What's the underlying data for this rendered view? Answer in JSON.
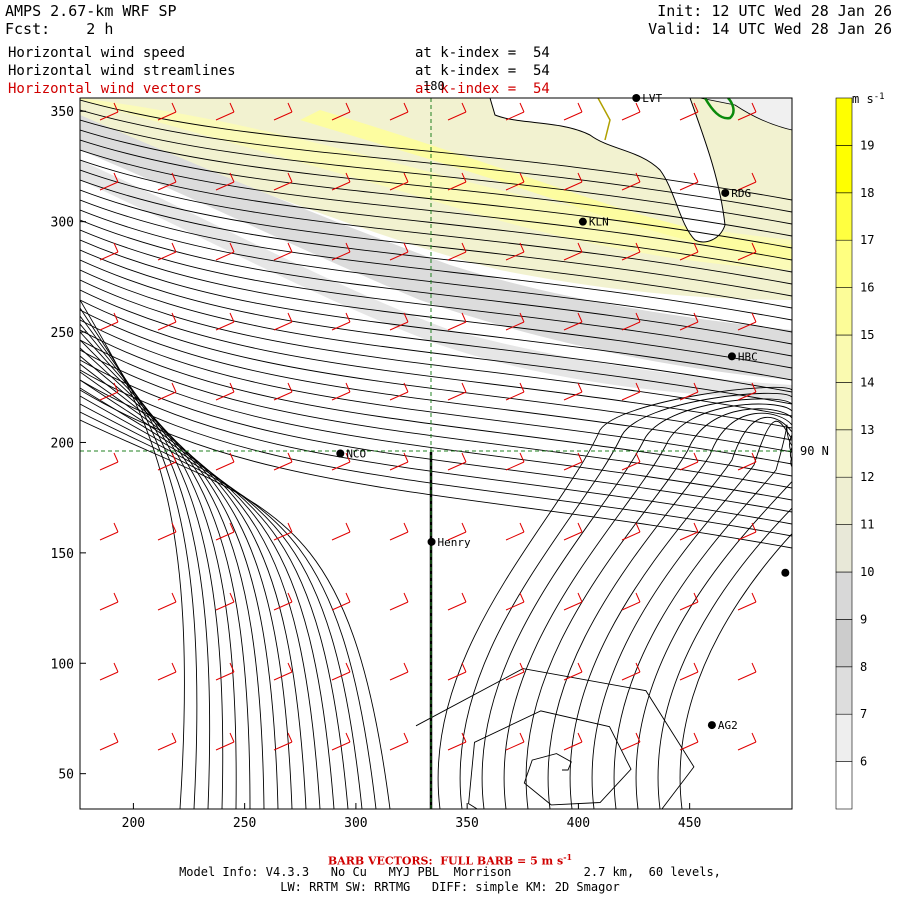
{
  "header": {
    "model": "AMPS 2.67-km WRF SP",
    "init": "Init: 12 UTC Wed 28 Jan 26",
    "fcst_label": "Fcst:",
    "fcst_value": "2 h",
    "valid": "Valid: 14 UTC Wed 28 Jan 26"
  },
  "fields": [
    {
      "name": "Horizontal wind speed",
      "level": "at k-index =  54",
      "color": "#000000"
    },
    {
      "name": "Horizontal wind streamlines",
      "level": "at k-index =  54",
      "color": "#000000"
    },
    {
      "name": "Horizontal wind vectors",
      "level": "at k-index =  54",
      "color": "#d00000"
    }
  ],
  "chart_data": {
    "type": "heatmap",
    "x_ticks": [
      200,
      250,
      300,
      350,
      400,
      450
    ],
    "y_ticks": [
      50,
      100,
      150,
      200,
      250,
      300,
      350
    ],
    "xlim": [
      176,
      496
    ],
    "ylim": [
      34,
      356
    ],
    "guide_lines": {
      "meridian_label": "180",
      "parallel_label": "90 N",
      "meridian_x": 333,
      "parallel_y": 195
    },
    "stations": [
      {
        "name": "LVT",
        "x": 426,
        "y": 356
      },
      {
        "name": "RDG",
        "x": 466,
        "y": 313
      },
      {
        "name": "KLN",
        "x": 402,
        "y": 300
      },
      {
        "name": "HBC",
        "x": 469,
        "y": 239
      },
      {
        "name": "NCO",
        "x": 293,
        "y": 195
      },
      {
        "name": "Henry",
        "x": 334,
        "y": 155
      },
      {
        "name": "",
        "x": 493,
        "y": 141
      },
      {
        "name": "AG2",
        "x": 460,
        "y": 72
      }
    ],
    "colorbar": {
      "unit": "m s",
      "unit_sup": "-1",
      "levels": [
        6,
        7,
        8,
        9,
        10,
        11,
        12,
        13,
        14,
        15,
        16,
        17,
        18,
        19
      ],
      "colors": [
        "#ffffff",
        "#eeeeee",
        "#dddddd",
        "#cccccc",
        "#d8d8d8",
        "#e8e8d8",
        "#efefd2",
        "#f4f4cc",
        "#f8f8c0",
        "#fafab0",
        "#fcfc98",
        "#ffff80",
        "#ffff40",
        "#ffff00"
      ]
    },
    "barb_note": "BARB VECTORS:  FULL BARB = 5 m s",
    "barb_note_sup": "-1"
  },
  "footer": {
    "model_info": "Model Info: V4.3.3   No Cu   MYJ PBL  Morrison          2.7 km,  60 levels,",
    "physics": "LW: RRTM SW: RRTMG   DIFF: simple KM: 2D Smagor"
  }
}
